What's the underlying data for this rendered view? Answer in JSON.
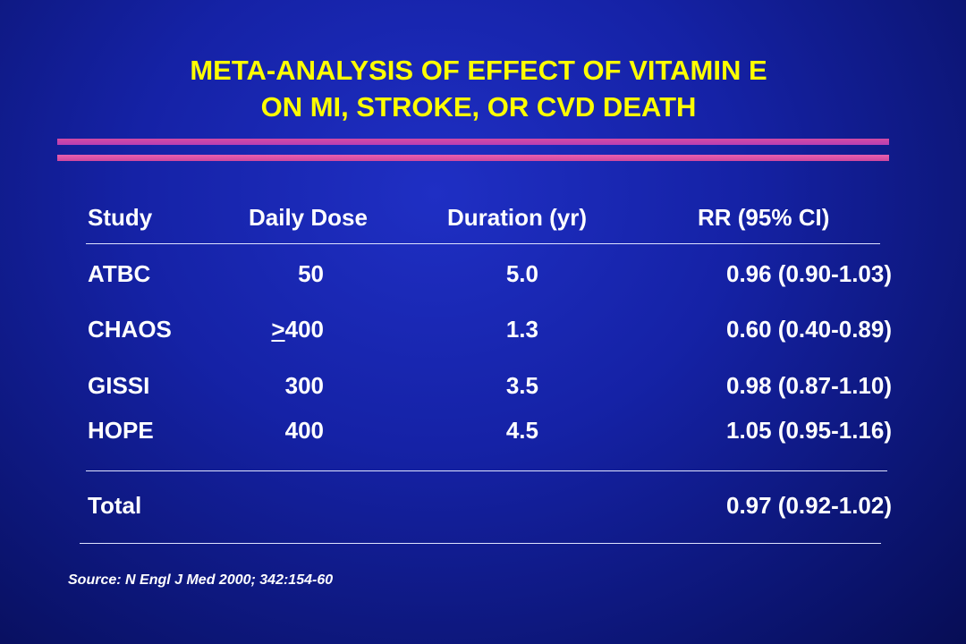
{
  "title": {
    "line1": "META-ANALYSIS OF EFFECT OF VITAMIN E",
    "line2": "ON MI, STROKE, OR CVD DEATH"
  },
  "colors": {
    "title": "#ffff00",
    "background": "#1522a6",
    "divider": "#d34aa4",
    "text": "#ffffff"
  },
  "table": {
    "headers": {
      "study": "Study",
      "dose": "Daily Dose",
      "duration": "Duration (yr)",
      "rr": "RR (95% CI)"
    },
    "rows": [
      {
        "study": "ATBC",
        "dose_prefix": "",
        "dose": "50",
        "duration": "5.0",
        "rr": "0.96 (0.90-1.03)"
      },
      {
        "study": "CHAOS",
        "dose_prefix": ">",
        "dose": "400",
        "duration": "1.3",
        "rr": "0.60 (0.40-0.89)"
      },
      {
        "study": "GISSI",
        "dose_prefix": "",
        "dose": "300",
        "duration": "3.5",
        "rr": "0.98 (0.87-1.10)"
      },
      {
        "study": "HOPE",
        "dose_prefix": "",
        "dose": "400",
        "duration": "4.5",
        "rr": "1.05 (0.95-1.16)"
      }
    ],
    "total": {
      "label": "Total",
      "rr": "0.97 (0.92-1.02)"
    }
  },
  "source": "Source: N Engl J Med 2000; 342:154-60"
}
